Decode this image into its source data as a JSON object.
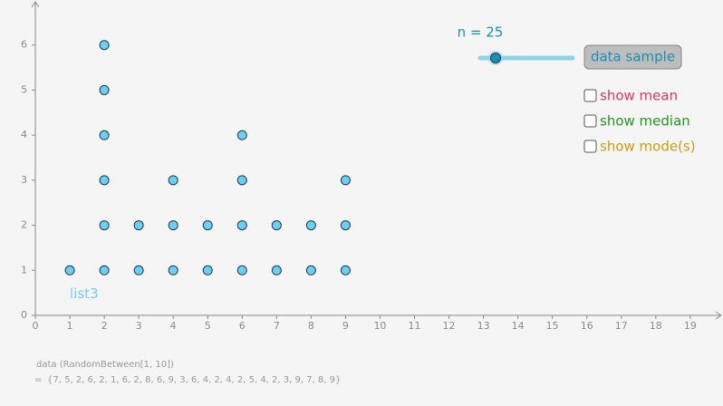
{
  "chart_data": {
    "type": "scatter",
    "series_label": "list3",
    "x": [
      1,
      2,
      2,
      2,
      2,
      2,
      2,
      3,
      3,
      4,
      4,
      4,
      5,
      5,
      6,
      6,
      6,
      6,
      7,
      7,
      8,
      8,
      9,
      9,
      9
    ],
    "y": [
      1,
      1,
      2,
      3,
      4,
      5,
      6,
      1,
      2,
      1,
      2,
      3,
      1,
      2,
      1,
      2,
      3,
      4,
      1,
      2,
      1,
      2,
      1,
      2,
      3
    ],
    "color": "#6ecff6",
    "xlim": [
      0,
      19.95
    ],
    "ylim": [
      0,
      7
    ],
    "xticks": [
      0,
      1,
      2,
      3,
      4,
      5,
      6,
      7,
      8,
      9,
      10,
      11,
      12,
      13,
      14,
      15,
      16,
      17,
      18,
      19
    ],
    "yticks": [
      0,
      1,
      2,
      3,
      4,
      5,
      6
    ]
  },
  "controls": {
    "slider_label": "n = 25",
    "button": "data sample",
    "checkboxes": [
      {
        "label": "show mean",
        "color": "#e2336b"
      },
      {
        "label": "show median",
        "color": "#1f9a1f"
      },
      {
        "label": "show mode(s)",
        "color": "#cf9a10"
      }
    ]
  },
  "algebra": {
    "definition": "data (RandomBetween[1, 10])",
    "equals": "=",
    "value": "{7, 5, 2, 6, 2, 1, 6, 2, 8, 6, 9, 3, 6, 4, 2, 4, 2, 5, 4, 2, 3, 9, 7, 8, 9}"
  }
}
